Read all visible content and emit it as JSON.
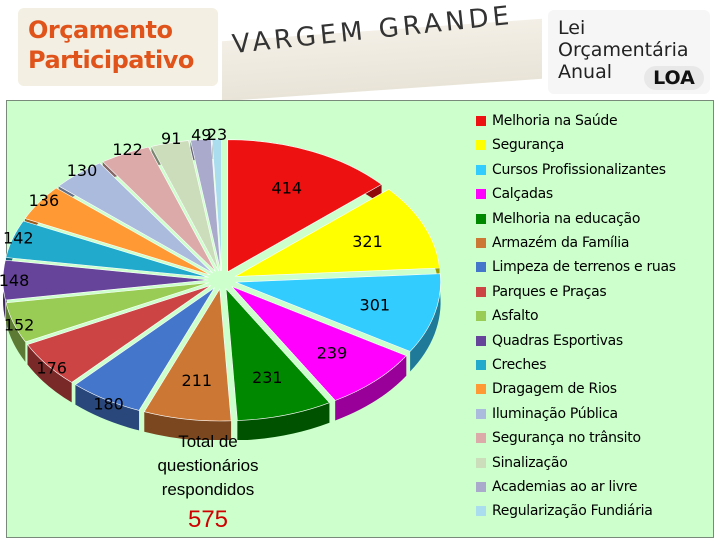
{
  "header": {
    "logo_left_line1": "Orçamento",
    "logo_left_line2": "Participativo",
    "title": "VARGEM GRANDE",
    "logo_right_lines": [
      "Lei",
      "Orçamentária",
      "Anual"
    ],
    "logo_right_mark": "LOA"
  },
  "total": {
    "label": "Total de questionários respondidos",
    "value": "575"
  },
  "chart_data": {
    "type": "pie",
    "title": "",
    "legend_position": "right",
    "categories": [
      "Melhoria na Saúde",
      "Segurança",
      "Cursos Profissionalizantes",
      "Calçadas",
      "Melhoria na educação",
      "Armazém da Família",
      "Limpeza de terrenos e ruas",
      "Parques e Praças",
      "Asfalto",
      "Quadras Esportivas",
      "Creches",
      "Dragagem de Rios",
      "Iluminação Pública",
      "Segurança no trânsito",
      "Sinalização",
      "Academias ao ar livre",
      "Regularização Fundiária"
    ],
    "values": [
      414,
      321,
      301,
      239,
      231,
      211,
      180,
      176,
      152,
      148,
      142,
      136,
      130,
      122,
      91,
      49,
      23
    ],
    "colors": [
      "#ee1111",
      "#ffff00",
      "#33ccff",
      "#ff00ff",
      "#008800",
      "#cc7733",
      "#4477cc",
      "#cc4444",
      "#99cc55",
      "#664499",
      "#22aacc",
      "#ff9933",
      "#aabbdd",
      "#ddaaaa",
      "#ccddbb",
      "#aaaacc",
      "#aaddee"
    ]
  }
}
